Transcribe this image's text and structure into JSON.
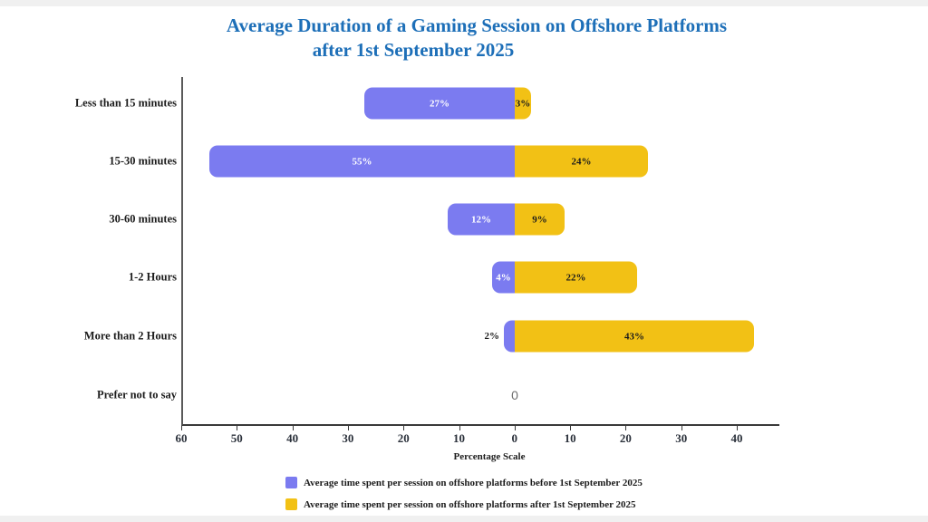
{
  "title": {
    "line1": "Average Duration of a Gaming Session on Offshore Platforms",
    "line2": "after 1st September 2025"
  },
  "chart_data": {
    "type": "bar",
    "variant": "diverging-horizontal",
    "categories": [
      "Less than 15 minutes",
      "15-30 minutes",
      "30-60 minutes",
      "1-2 Hours",
      "More than 2 Hours",
      "Prefer not to say"
    ],
    "series": [
      {
        "name": "Average time spent per session on offshore platforms before 1st September 2025",
        "direction": "left",
        "color": "#7b7bf0",
        "label_color": "#ffffff",
        "values": [
          27,
          55,
          12,
          4,
          2,
          0
        ]
      },
      {
        "name": "Average time spent per session on offshore platforms after 1st September 2025",
        "direction": "right",
        "color": "#f2c115",
        "label_color": "#1c1c1c",
        "values": [
          3,
          24,
          9,
          22,
          43,
          0
        ]
      }
    ],
    "value_suffix": "%",
    "zero_display": "0",
    "xlabel": "Percentage Scale",
    "axis_tick_labels": [
      "60",
      "50",
      "40",
      "30",
      "20",
      "10",
      "0",
      "10",
      "20",
      "30",
      "40"
    ],
    "xlim": [
      -60,
      40
    ],
    "grid": false,
    "legend_position": "bottom"
  },
  "colors": {
    "title": "#1d6fb8",
    "before_series": "#7b7bf0",
    "after_series": "#f2c115",
    "axis_line": "#3a3a3a",
    "zero_label": "#6e6e6e",
    "background": "#ffffff"
  }
}
